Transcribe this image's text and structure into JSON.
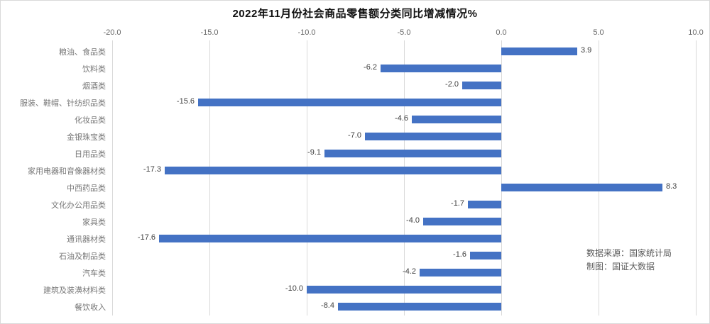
{
  "chart": {
    "title": "2022年11月份社会商品零售额分类同比增减情况%"
  },
  "annotation": {
    "line1": "数据来源：国家统计局",
    "line2": "制图：国证大数据"
  },
  "chart_data": {
    "type": "bar",
    "orientation": "horizontal",
    "title": "2022年11月份社会商品零售额分类同比增减情况%",
    "categories": [
      "粮油、食品类",
      "饮料类",
      "烟酒类",
      "服装、鞋帽、针纺织品类",
      "化妆品类",
      "金银珠宝类",
      "日用品类",
      "家用电器和音像器材类",
      "中西药品类",
      "文化办公用品类",
      "家具类",
      "通讯器材类",
      "石油及制品类",
      "汽车类",
      "建筑及装潢材料类",
      "餐饮收入"
    ],
    "values": [
      3.9,
      -6.2,
      -2.0,
      -15.6,
      -4.6,
      -7.0,
      -9.1,
      -17.3,
      8.3,
      -1.7,
      -4.0,
      -17.6,
      -1.6,
      -4.2,
      -10.0,
      -8.4
    ],
    "value_labels": [
      "3.9",
      "-6.2",
      "-2.0",
      "-15.6",
      "-4.6",
      "-7.0",
      "-9.1",
      "-17.3",
      "8.3",
      "-1.7",
      "-4.0",
      "-17.6",
      "-1.6",
      "-4.2",
      "-10.0",
      "-8.4"
    ],
    "x_ticks": [
      -20.0,
      -15.0,
      -10.0,
      -5.0,
      0.0,
      5.0,
      10.0
    ],
    "x_tick_labels": [
      "-20.0",
      "-15.0",
      "-10.0",
      "-5.0",
      "0.0",
      "5.0",
      "10.0"
    ],
    "xlim": [
      -20,
      10
    ],
    "grid": "vertical",
    "legend": "none",
    "bar_color": "#4472C4",
    "gridline_color": "#d9d9d9",
    "category_label_color": "#767676",
    "value_label_color": "#3f3f3f"
  }
}
